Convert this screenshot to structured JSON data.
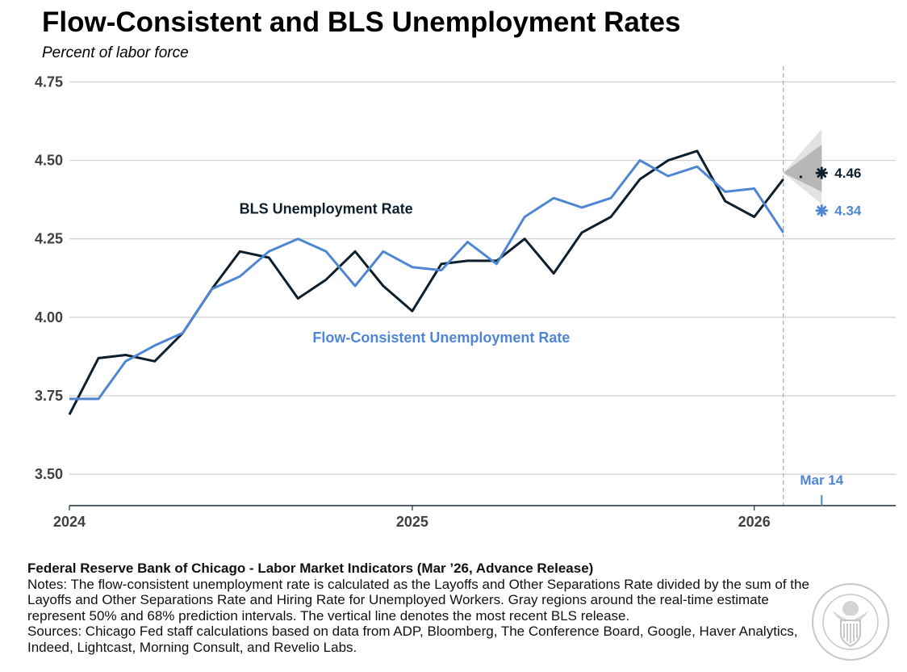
{
  "header": {
    "title": "Flow-Consistent and BLS Unemployment Rates",
    "subtitle": "Percent of labor force"
  },
  "chart_data": {
    "type": "line",
    "title": "Flow-Consistent and BLS Unemployment Rates",
    "subtitle": "Percent of labor force",
    "xlabel": "",
    "ylabel": "",
    "ylim": [
      3.4,
      4.8
    ],
    "yticks": [
      3.5,
      3.75,
      4.0,
      4.25,
      4.5,
      4.75
    ],
    "ytick_labels": [
      "3.50",
      "3.75",
      "4.00",
      "4.25",
      "4.50",
      "4.75"
    ],
    "xlim": [
      "2024-01-01",
      "2026-06-01"
    ],
    "xticks": [
      "2024-01-01",
      "2025-01-01",
      "2026-01-01"
    ],
    "xtick_labels": [
      "2024",
      "2025",
      "2026"
    ],
    "grid": "horizontal",
    "series": [
      {
        "name": "BLS Unemployment Rate",
        "color": "#0d1f2d",
        "points": [
          [
            "2024-01",
            3.69
          ],
          [
            "2024-02",
            3.87
          ],
          [
            "2024-03",
            3.88
          ],
          [
            "2024-04",
            3.86
          ],
          [
            "2024-05",
            3.95
          ],
          [
            "2024-06",
            4.09
          ],
          [
            "2024-07",
            4.21
          ],
          [
            "2024-08",
            4.19
          ],
          [
            "2024-09",
            4.06
          ],
          [
            "2024-10",
            4.12
          ],
          [
            "2024-11",
            4.21
          ],
          [
            "2024-12",
            4.1
          ],
          [
            "2025-01",
            4.02
          ],
          [
            "2025-02",
            4.17
          ],
          [
            "2025-03",
            4.18
          ],
          [
            "2025-04",
            4.18
          ],
          [
            "2025-05",
            4.25
          ],
          [
            "2025-06",
            4.14
          ],
          [
            "2025-07",
            4.27
          ],
          [
            "2025-08",
            4.32
          ],
          [
            "2025-09",
            4.44
          ],
          [
            "2025-10",
            4.5
          ],
          [
            "2025-11",
            4.53
          ],
          [
            "2025-12",
            4.37
          ],
          [
            "2026-01",
            4.32
          ],
          [
            "2026-02",
            4.44
          ]
        ]
      },
      {
        "name": "Flow-Consistent Unemployment Rate",
        "color": "#4f86d4",
        "points": [
          [
            "2024-01",
            3.74
          ],
          [
            "2024-02",
            3.74
          ],
          [
            "2024-03",
            3.86
          ],
          [
            "2024-04",
            3.91
          ],
          [
            "2024-05",
            3.95
          ],
          [
            "2024-06",
            4.09
          ],
          [
            "2024-07",
            4.13
          ],
          [
            "2024-08",
            4.21
          ],
          [
            "2024-09",
            4.25
          ],
          [
            "2024-10",
            4.21
          ],
          [
            "2024-11",
            4.1
          ],
          [
            "2024-12",
            4.21
          ],
          [
            "2025-01",
            4.16
          ],
          [
            "2025-02",
            4.15
          ],
          [
            "2025-03",
            4.24
          ],
          [
            "2025-04",
            4.17
          ],
          [
            "2025-05",
            4.32
          ],
          [
            "2025-06",
            4.38
          ],
          [
            "2025-07",
            4.35
          ],
          [
            "2025-08",
            4.38
          ],
          [
            "2025-09",
            4.5
          ],
          [
            "2025-10",
            4.45
          ],
          [
            "2025-11",
            4.48
          ],
          [
            "2025-12",
            4.4
          ],
          [
            "2026-01",
            4.41
          ],
          [
            "2026-02",
            4.27
          ]
        ]
      }
    ],
    "estimates": [
      {
        "series": "BLS Unemployment Rate",
        "date": "2026-03-14",
        "value": 4.46,
        "label": "4.46",
        "color": "#0d1f2d"
      },
      {
        "series": "Flow-Consistent Unemployment Rate",
        "date": "2026-03-14",
        "value": 4.34,
        "label": "4.34",
        "color": "#4f86d4"
      }
    ],
    "prediction_intervals": [
      {
        "level": "68%",
        "date_start": "2026-02-01",
        "date_end": "2026-03-14",
        "low": 4.36,
        "high": 4.6,
        "color": "#e0e0e0"
      },
      {
        "level": "50%",
        "date_start": "2026-02-01",
        "date_end": "2026-03-14",
        "low": 4.4,
        "high": 4.55,
        "color": "#b4b4b4"
      }
    ],
    "vertical_line": {
      "date": "2026-02-01",
      "style": "dashed"
    },
    "marker": {
      "date": "2026-03-14",
      "label": "Mar 14"
    },
    "series_labels": [
      {
        "text": "BLS Unemployment Rate",
        "date": "2024-10-01",
        "value": 4.33
      },
      {
        "text": "Flow-Consistent Unemployment Rate",
        "date": "2025-02-01",
        "value": 3.92
      }
    ]
  },
  "footer": {
    "source_title": "Federal Reserve Bank of Chicago - Labor Market Indicators (Mar ’26, Advance Release)",
    "notes": "Notes: The flow-consistent unemployment rate is calculated as the Layoffs and Other Separations Rate divided by the sum of the Layoffs and Other Separations Rate and Hiring Rate for Unemployed Workers. Gray regions around the real-time estimate represent 50% and 68% prediction intervals. The vertical line denotes the most recent BLS release.",
    "sources": "Sources: Chicago Fed staff calculations based on data from ADP, Bloomberg, The Conference Board, Google, Haver Analytics, Indeed, Lightcast, Morning Consult, and Revelio Labs."
  },
  "logo": {
    "icon": "federal-reserve-seal-icon"
  }
}
